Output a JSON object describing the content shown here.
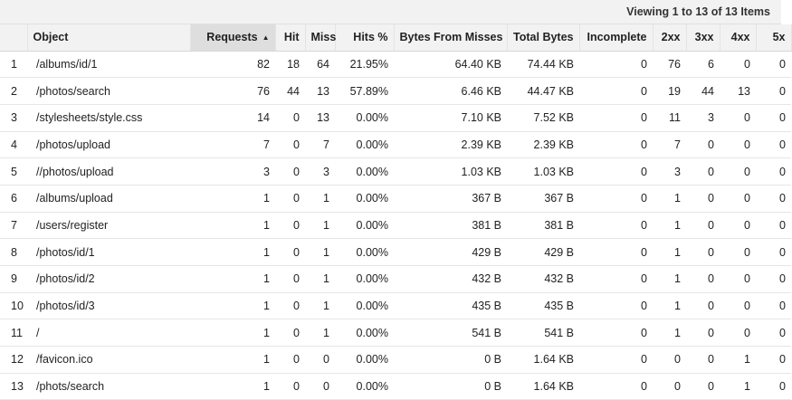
{
  "pager": {
    "viewing_text": "Viewing 1 to 13 of 13 Items"
  },
  "columns": [
    "",
    "Object",
    "Requests",
    "Hit",
    "Miss",
    "Hits %",
    "Bytes From Misses",
    "Total Bytes",
    "Incomplete",
    "2xx",
    "3xx",
    "4xx",
    "5x"
  ],
  "sorted_column": "Requests",
  "rows": [
    [
      "1",
      "/albums/id/1",
      "82",
      "18",
      "64",
      "21.95%",
      "64.40 KB",
      "74.44 KB",
      "0",
      "76",
      "6",
      "0",
      "0"
    ],
    [
      "2",
      "/photos/search",
      "76",
      "44",
      "13",
      "57.89%",
      "6.46 KB",
      "44.47 KB",
      "0",
      "19",
      "44",
      "13",
      "0"
    ],
    [
      "3",
      "/stylesheets/style.css",
      "14",
      "0",
      "13",
      "0.00%",
      "7.10 KB",
      "7.52 KB",
      "0",
      "11",
      "3",
      "0",
      "0"
    ],
    [
      "4",
      "/photos/upload",
      "7",
      "0",
      "7",
      "0.00%",
      "2.39 KB",
      "2.39 KB",
      "0",
      "7",
      "0",
      "0",
      "0"
    ],
    [
      "5",
      "//photos/upload",
      "3",
      "0",
      "3",
      "0.00%",
      "1.03 KB",
      "1.03 KB",
      "0",
      "3",
      "0",
      "0",
      "0"
    ],
    [
      "6",
      "/albums/upload",
      "1",
      "0",
      "1",
      "0.00%",
      "367 B",
      "367 B",
      "0",
      "1",
      "0",
      "0",
      "0"
    ],
    [
      "7",
      "/users/register",
      "1",
      "0",
      "1",
      "0.00%",
      "381 B",
      "381 B",
      "0",
      "1",
      "0",
      "0",
      "0"
    ],
    [
      "8",
      "/photos/id/1",
      "1",
      "0",
      "1",
      "0.00%",
      "429 B",
      "429 B",
      "0",
      "1",
      "0",
      "0",
      "0"
    ],
    [
      "9",
      "/photos/id/2",
      "1",
      "0",
      "1",
      "0.00%",
      "432 B",
      "432 B",
      "0",
      "1",
      "0",
      "0",
      "0"
    ],
    [
      "10",
      "/photos/id/3",
      "1",
      "0",
      "1",
      "0.00%",
      "435 B",
      "435 B",
      "0",
      "1",
      "0",
      "0",
      "0"
    ],
    [
      "11",
      "/",
      "1",
      "0",
      "1",
      "0.00%",
      "541 B",
      "541 B",
      "0",
      "1",
      "0",
      "0",
      "0"
    ],
    [
      "12",
      "/favicon.ico",
      "1",
      "0",
      "0",
      "0.00%",
      "0 B",
      "1.64 KB",
      "0",
      "0",
      "0",
      "1",
      "0"
    ],
    [
      "13",
      "/phots/search",
      "1",
      "0",
      "0",
      "0.00%",
      "0 B",
      "1.64 KB",
      "0",
      "0",
      "0",
      "1",
      "0"
    ]
  ]
}
